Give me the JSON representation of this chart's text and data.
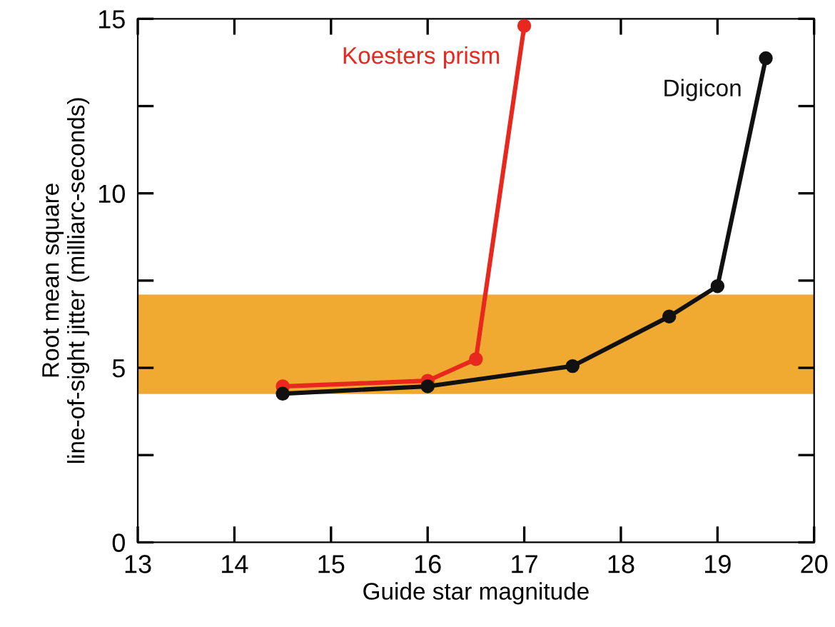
{
  "chart_data": {
    "type": "line",
    "xlabel": "Guide star magnitude",
    "ylabel": "Root mean square\nline-of-sight jitter (milliarc-seconds)",
    "xlim": [
      13,
      20
    ],
    "xticks": [
      13,
      14,
      15,
      16,
      17,
      18,
      19,
      20
    ],
    "ylim": [
      0,
      15
    ],
    "yticks": [
      0,
      {
        "value": 2.5,
        "label": null
      },
      5,
      {
        "value": 7.5,
        "label": null
      },
      10,
      {
        "value": 12.5,
        "label": null
      },
      15
    ],
    "marker": "circle",
    "grid": false,
    "legend": false,
    "bands": [
      {
        "axis": "y",
        "from": 4.25,
        "to": 7.1,
        "color": "#f0aa32"
      }
    ],
    "series": [
      {
        "name": "Koesters prism",
        "color": "#e8281e",
        "x": [
          14.5,
          16,
          16.5,
          17
        ],
        "values": [
          4.47,
          4.63,
          5.25,
          14.8
        ]
      },
      {
        "name": "Digicon",
        "color": "#111111",
        "x": [
          14.5,
          16,
          17.5,
          18.5,
          19,
          19.5
        ],
        "values": [
          4.26,
          4.47,
          5.05,
          6.47,
          7.34,
          13.87
        ]
      }
    ]
  }
}
